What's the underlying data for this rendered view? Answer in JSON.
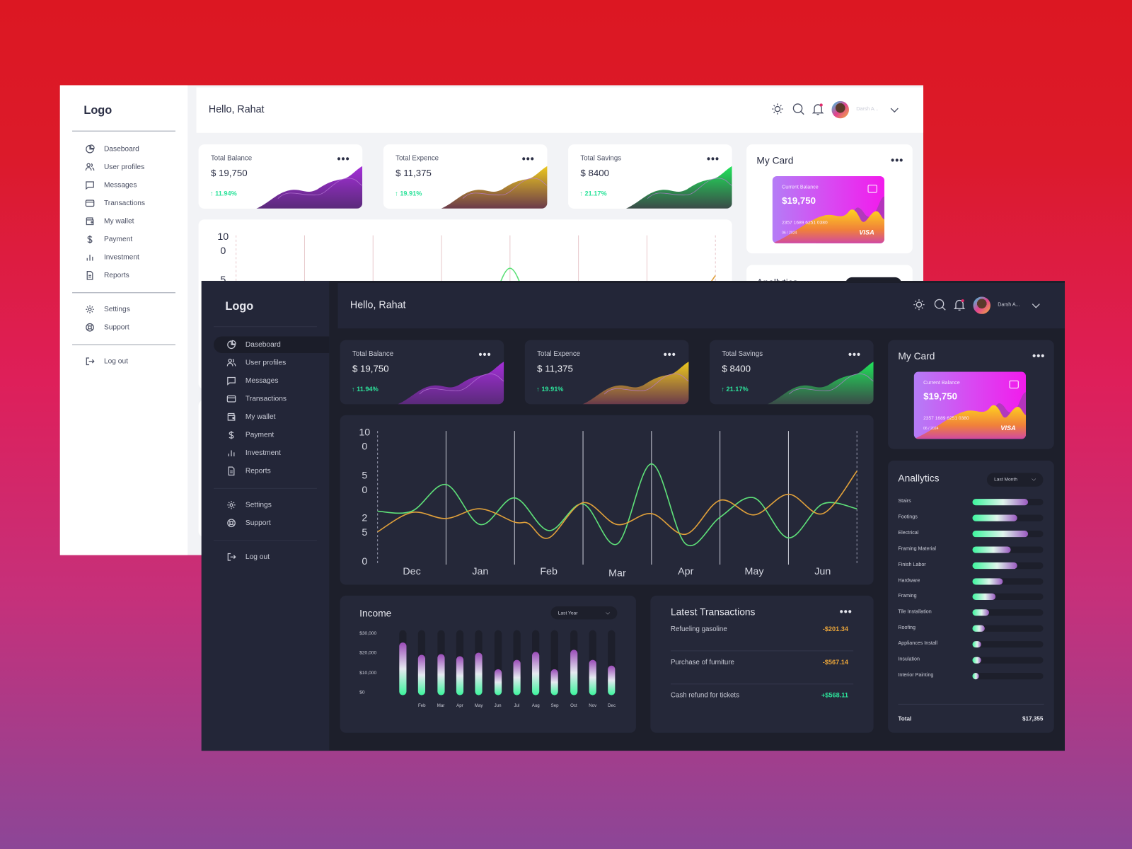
{
  "colors": {
    "accent_green": "#2de39b",
    "line_green": "#5ee079",
    "line_orange": "#e0a03a",
    "negative": "#e8a43a",
    "positive": "#2de39b",
    "background_dark": "#1d1f2b",
    "panel_dark": "#252839"
  },
  "sidebar": {
    "logo": "Logo",
    "items": [
      {
        "label": "Daseboard",
        "icon": "pie-chart-icon",
        "active": true
      },
      {
        "label": "User profiles",
        "icon": "users-icon"
      },
      {
        "label": "Messages",
        "icon": "message-icon"
      },
      {
        "label": "Transactions",
        "icon": "credit-card-icon"
      },
      {
        "label": "My wallet",
        "icon": "wallet-icon"
      },
      {
        "label": "Payment",
        "icon": "dollar-icon"
      },
      {
        "label": "Investment",
        "icon": "bar-chart-icon"
      },
      {
        "label": "Reports",
        "icon": "document-icon"
      }
    ],
    "secondary": [
      {
        "label": "Settings",
        "icon": "gear-icon"
      },
      {
        "label": "Support",
        "icon": "lifebuoy-icon"
      }
    ],
    "logout": {
      "label": "Log out",
      "icon": "logout-icon"
    }
  },
  "header": {
    "greeting": "Hello, Rahat",
    "user_name": "Darsh A...",
    "icons": [
      "sun-icon",
      "search-icon",
      "bell-icon",
      "chevron-down-icon"
    ]
  },
  "stats": [
    {
      "title": "Total Balance",
      "value": "$ 19,750",
      "change": "11.94%",
      "trend": "up",
      "color": "#9b2bd0"
    },
    {
      "title": "Total Expence",
      "value": "$ 11,375",
      "change": "19.91%",
      "trend": "up",
      "color": "#e6c21e"
    },
    {
      "title": "Total Savings",
      "value": "$ 8400",
      "change": "21.17%",
      "trend": "up",
      "color": "#1fe05a"
    }
  ],
  "my_card": {
    "title": "My Card",
    "label": "Current Balance",
    "balance": "$19,750",
    "number": "2357 1689 6251 0380",
    "expiry": "06 / 2024",
    "brand": "VISA"
  },
  "chart_data": [
    {
      "type": "line",
      "x_labels": [
        "Dec",
        "Jan",
        "Feb",
        "Mar",
        "Apr",
        "May",
        "Jun"
      ],
      "y_ticks": [
        "100",
        "50",
        "25",
        "0"
      ],
      "ylim": [
        0,
        100
      ],
      "xlim": [
        0,
        7
      ],
      "series": [
        {
          "color": "#5ee079",
          "points": [
            [
              0,
              41
            ],
            [
              0.5,
              41
            ],
            [
              1,
              63
            ],
            [
              1.5,
              30
            ],
            [
              2,
              52
            ],
            [
              2.5,
              25
            ],
            [
              3,
              47
            ],
            [
              3.5,
              14
            ],
            [
              4,
              80
            ],
            [
              4.5,
              14
            ],
            [
              5,
              36
            ],
            [
              5.5,
              52
            ],
            [
              6,
              19
            ],
            [
              6.5,
              47
            ],
            [
              7,
              43
            ]
          ]
        },
        {
          "color": "#e0a03a",
          "points": [
            [
              0,
              24
            ],
            [
              0.5,
              40
            ],
            [
              1,
              35
            ],
            [
              1.5,
              43
            ],
            [
              2,
              32
            ],
            [
              2.2,
              31
            ],
            [
              2.5,
              19
            ],
            [
              3,
              48
            ],
            [
              3.5,
              30
            ],
            [
              4,
              39
            ],
            [
              4.5,
              22
            ],
            [
              5,
              50
            ],
            [
              5.5,
              38
            ],
            [
              6,
              55
            ],
            [
              6.5,
              39
            ],
            [
              7,
              74
            ]
          ]
        }
      ]
    },
    {
      "type": "bar",
      "title": "Income",
      "categories": [
        "",
        "Feb",
        "Mar",
        "Apr",
        "May",
        "Jun",
        "Jul",
        "Aug",
        "Sep",
        "Oct",
        "Nov",
        "Dec"
      ],
      "values": [
        25600,
        19400,
        19900,
        18500,
        20600,
        12000,
        17000,
        21000,
        12000,
        22000,
        17000,
        14000
      ],
      "y_ticks": [
        "$30,000",
        "$20,000",
        "$10,000",
        "$0"
      ],
      "ylim": [
        0,
        30000
      ]
    }
  ],
  "income": {
    "title": "Income",
    "period": "Last Year"
  },
  "transactions": {
    "title": "Latest Transactions",
    "rows": [
      {
        "name": "Refueling gasoline",
        "amount": "-$201.34",
        "type": "negative"
      },
      {
        "name": "Purchase of furniture",
        "amount": "-$567.14",
        "type": "negative"
      },
      {
        "name": "Cash refund for tickets",
        "amount": "+$568.11",
        "type": "positive"
      }
    ]
  },
  "analytics": {
    "title": "Anallytics",
    "period": "Last Month",
    "items": [
      {
        "label": "Stairs",
        "value": 0.79
      },
      {
        "label": "Footings",
        "value": 0.63
      },
      {
        "label": "Electrical",
        "value": 0.79
      },
      {
        "label": "Framing Material",
        "value": 0.54
      },
      {
        "label": "Finish Labor",
        "value": 0.63
      },
      {
        "label": "Hardware",
        "value": 0.43
      },
      {
        "label": "Framing",
        "value": 0.33
      },
      {
        "label": "Tile Installation",
        "value": 0.23
      },
      {
        "label": "Roofing",
        "value": 0.17
      },
      {
        "label": "Appliances Install",
        "value": 0.12
      },
      {
        "label": "Insulation",
        "value": 0.12
      },
      {
        "label": "Interior Painting",
        "value": 0.07
      }
    ],
    "total_label": "Total",
    "total": "$17,355"
  }
}
